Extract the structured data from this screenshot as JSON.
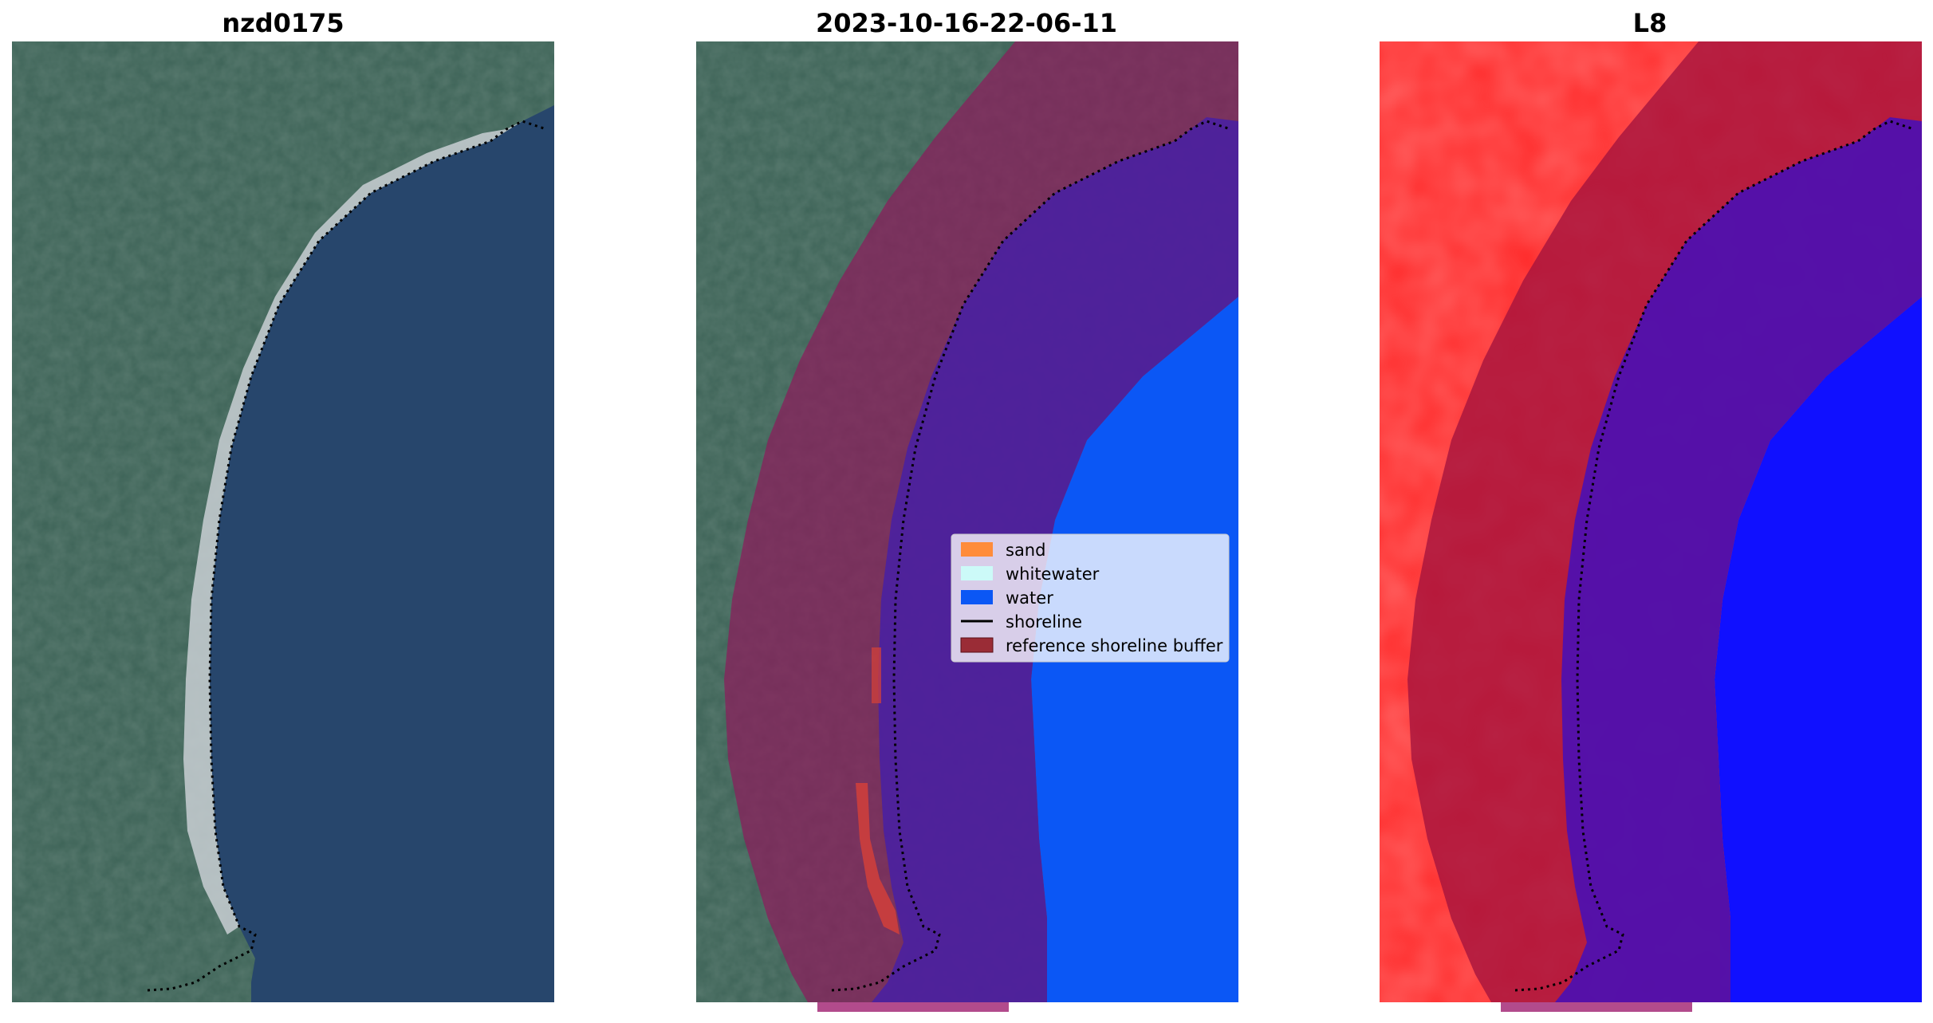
{
  "panels": [
    {
      "title": "nzd0175"
    },
    {
      "title": "2023-10-16-22-06-11"
    },
    {
      "title": "L8"
    }
  ],
  "legend": {
    "entries": [
      {
        "label": "sand",
        "color": "#ff8c3a",
        "kind": "patch"
      },
      {
        "label": "whitewater",
        "color": "#ccfaf8",
        "kind": "patch"
      },
      {
        "label": "water",
        "color": "#0b57f5",
        "kind": "patch"
      },
      {
        "label": "shoreline",
        "color": "#000000",
        "kind": "line"
      },
      {
        "label": "reference shoreline buffer",
        "color": "#9a2c36",
        "kind": "patch"
      }
    ]
  },
  "colors": {
    "ocean": "#27466c",
    "land": "#3d6357",
    "beach_sand": "#d4d8db",
    "classified_water": "#0b57f5",
    "buffer_overlay": "#8c1c5c",
    "l8_land": "#ff2a2a",
    "l8_water": "#1010ff",
    "shoreline": "#000000"
  }
}
